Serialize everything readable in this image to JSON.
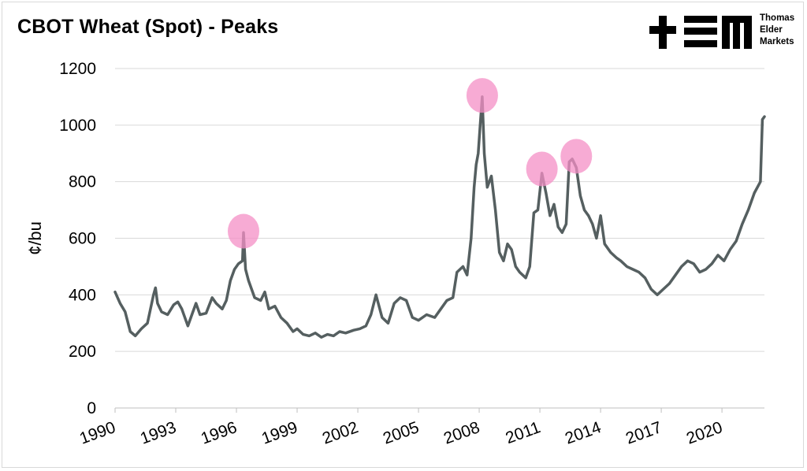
{
  "title": "CBOT Wheat (Spot) - Peaks",
  "logo": {
    "lines": [
      "Thomas",
      "Elder",
      "Markets"
    ],
    "icon": "tem-logo-icon"
  },
  "colors": {
    "line": "#555f60",
    "peak": "#f48fc6",
    "grid": "#d9d9d9"
  },
  "chart_data": {
    "type": "line",
    "title": "CBOT Wheat (Spot) - Peaks",
    "xlabel": "",
    "ylabel": "¢/bu",
    "xlim": [
      1990,
      2022.1
    ],
    "ylim": [
      0,
      1200
    ],
    "yticks": [
      0,
      200,
      400,
      600,
      800,
      1000,
      1200
    ],
    "xticks": [
      "1990",
      "1993",
      "1996",
      "1999",
      "2002",
      "2005",
      "2008",
      "2011",
      "2014",
      "2017",
      "2020"
    ],
    "grid": "horizontal",
    "legend": "none",
    "series": [
      {
        "x": [
          1990,
          1990.25,
          1990.5,
          1990.75,
          1991,
          1991.3,
          1991.6,
          1991.9,
          1992,
          1992.1,
          1992.3,
          1992.6,
          1992.9,
          1993.1,
          1993.3,
          1993.6,
          1993.8,
          1994,
          1994.2,
          1994.5,
          1994.8,
          1995,
          1995.3,
          1995.5,
          1995.7,
          1995.9,
          1996.1,
          1996.3,
          1996.35,
          1996.45,
          1996.6,
          1996.9,
          1997.2,
          1997.4,
          1997.6,
          1997.9,
          1998.2,
          1998.5,
          1998.8,
          1999,
          1999.3,
          1999.6,
          1999.9,
          2000.2,
          2000.5,
          2000.8,
          2001.1,
          2001.4,
          2001.8,
          2002.1,
          2002.4,
          2002.65,
          2002.9,
          2003.2,
          2003.5,
          2003.8,
          2004.1,
          2004.4,
          2004.7,
          2005,
          2005.4,
          2005.8,
          2006.1,
          2006.4,
          2006.7,
          2006.9,
          2007.2,
          2007.4,
          2007.6,
          2007.75,
          2007.85,
          2007.95,
          2008.05,
          2008.15,
          2008.25,
          2008.4,
          2008.6,
          2008.8,
          2009,
          2009.2,
          2009.4,
          2009.6,
          2009.8,
          2010,
          2010.3,
          2010.5,
          2010.7,
          2010.9,
          2011.1,
          2011.3,
          2011.5,
          2011.7,
          2011.9,
          2012.1,
          2012.3,
          2012.45,
          2012.6,
          2012.8,
          2013,
          2013.2,
          2013.4,
          2013.6,
          2013.8,
          2014,
          2014.2,
          2014.5,
          2014.8,
          2015,
          2015.3,
          2015.6,
          2015.9,
          2016.2,
          2016.5,
          2016.8,
          2017.1,
          2017.4,
          2017.7,
          2018,
          2018.3,
          2018.6,
          2018.9,
          2019.2,
          2019.5,
          2019.8,
          2020.1,
          2020.4,
          2020.7,
          2021,
          2021.3,
          2021.6,
          2021.9,
          2022,
          2022.1
        ],
        "values": [
          410,
          370,
          340,
          270,
          255,
          280,
          300,
          400,
          425,
          370,
          340,
          330,
          365,
          375,
          350,
          290,
          330,
          370,
          330,
          335,
          390,
          370,
          350,
          380,
          450,
          490,
          510,
          520,
          620,
          490,
          450,
          390,
          380,
          410,
          350,
          360,
          320,
          300,
          270,
          280,
          260,
          255,
          265,
          250,
          260,
          255,
          270,
          265,
          275,
          280,
          290,
          330,
          400,
          320,
          300,
          370,
          390,
          380,
          320,
          310,
          330,
          320,
          350,
          380,
          390,
          480,
          500,
          470,
          600,
          780,
          860,
          900,
          1000,
          1100,
          900,
          780,
          820,
          700,
          550,
          520,
          580,
          560,
          500,
          480,
          460,
          500,
          690,
          700,
          830,
          760,
          680,
          720,
          640,
          620,
          650,
          870,
          880,
          850,
          750,
          700,
          680,
          650,
          600,
          680,
          580,
          550,
          530,
          520,
          500,
          490,
          480,
          460,
          420,
          400,
          420,
          440,
          470,
          500,
          520,
          510,
          480,
          490,
          510,
          540,
          520,
          560,
          590,
          650,
          700,
          760,
          800,
          1020,
          1030
        ]
      }
    ],
    "annotations": [
      {
        "type": "peak-marker",
        "x": 1996.35,
        "y": 625
      },
      {
        "type": "peak-marker",
        "x": 2008.15,
        "y": 1105
      },
      {
        "type": "peak-marker",
        "x": 2011.1,
        "y": 845
      },
      {
        "type": "peak-marker",
        "x": 2012.8,
        "y": 890
      }
    ]
  }
}
